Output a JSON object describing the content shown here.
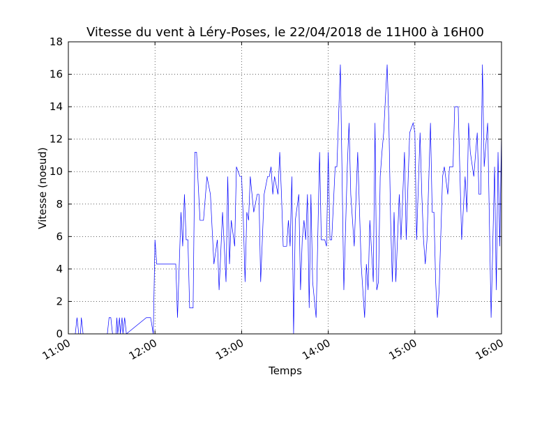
{
  "chart_data": {
    "type": "line",
    "title": "Vitesse du vent à Léry-Poses, le 22/04/2018 de 11H00 à 16H00",
    "xlabel": "Temps",
    "ylabel": "Vitesse (noeud)",
    "color": "#0000ff",
    "grid": true,
    "xlim": [
      11,
      16
    ],
    "xticks": [
      {
        "value": 11,
        "label": "11:00"
      },
      {
        "value": 12,
        "label": "12:00"
      },
      {
        "value": 13,
        "label": "13:00"
      },
      {
        "value": 14,
        "label": "14:00"
      },
      {
        "value": 15,
        "label": "15:00"
      },
      {
        "value": 16,
        "label": "16:00"
      }
    ],
    "ylim": [
      0,
      18
    ],
    "yticks": [
      0,
      2,
      4,
      6,
      8,
      10,
      12,
      14,
      16,
      18
    ],
    "x": [
      11,
      11.08,
      11.1,
      11.12,
      11.14,
      11.15,
      11.17,
      11.45,
      11.47,
      11.49,
      11.51,
      11.55,
      11.56,
      11.57,
      11.59,
      11.6,
      11.62,
      11.63,
      11.65,
      11.67,
      11.9,
      11.95,
      11.98,
      12,
      12.02,
      12.24,
      12.26,
      12.3,
      12.32,
      12.34,
      12.36,
      12.38,
      12.4,
      12.44,
      12.46,
      12.48,
      12.52,
      12.56,
      12.6,
      12.64,
      12.68,
      12.72,
      12.74,
      12.78,
      12.82,
      12.84,
      12.86,
      12.88,
      12.92,
      12.94,
      12.98,
      13,
      13.02,
      13.04,
      13.06,
      13.08,
      13.1,
      13.14,
      13.18,
      13.2,
      13.22,
      13.26,
      13.3,
      13.32,
      13.34,
      13.36,
      13.38,
      13.42,
      13.44,
      13.46,
      13.48,
      13.52,
      13.54,
      13.56,
      13.58,
      13.6,
      13.62,
      13.66,
      13.68,
      13.7,
      13.72,
      13.74,
      13.76,
      13.78,
      13.8,
      13.82,
      13.86,
      13.9,
      13.92,
      13.96,
      13.98,
      14,
      14.02,
      14.04,
      14.08,
      14.1,
      14.14,
      14.18,
      14.22,
      14.24,
      14.26,
      14.3,
      14.34,
      14.38,
      14.42,
      14.44,
      14.46,
      14.48,
      14.52,
      14.54,
      14.56,
      14.58,
      14.6,
      14.62,
      14.64,
      14.68,
      14.7,
      14.72,
      14.74,
      14.76,
      14.78,
      14.82,
      14.84,
      14.88,
      14.9,
      14.94,
      14.98,
      15,
      15.02,
      15.06,
      15.08,
      15.1,
      15.12,
      15.14,
      15.18,
      15.2,
      15.22,
      15.24,
      15.26,
      15.28,
      15.32,
      15.34,
      15.38,
      15.4,
      15.44,
      15.46,
      15.5,
      15.54,
      15.58,
      15.6,
      15.62,
      15.64,
      15.68,
      15.72,
      15.74,
      15.76,
      15.78,
      15.8,
      15.84,
      15.86,
      15.88,
      15.92,
      15.94,
      15.96,
      15.98,
      16
    ],
    "values": [
      0,
      0,
      1,
      0,
      0,
      1,
      0,
      0,
      1,
      1,
      0,
      0,
      1,
      0,
      1,
      0,
      1,
      0,
      1,
      0,
      1,
      1,
      0,
      5.8,
      4.3,
      4.3,
      1,
      7.5,
      5.4,
      8.6,
      5.8,
      5.8,
      1.6,
      1.6,
      11.2,
      11.2,
      7,
      7,
      9.7,
      8.6,
      4.3,
      5.8,
      2.7,
      7.5,
      3.2,
      9.7,
      4.3,
      7,
      5.4,
      10.3,
      9.7,
      9.7,
      7,
      3.2,
      7.5,
      7,
      9.7,
      7.5,
      8.6,
      8.6,
      3.2,
      8.6,
      9.7,
      9.7,
      10.3,
      8.6,
      9.7,
      8.6,
      11.2,
      8.6,
      5.4,
      5.4,
      7,
      5.4,
      9.7,
      0,
      7,
      8.6,
      2.7,
      5.8,
      7,
      5.8,
      8.6,
      1.6,
      8.6,
      3.2,
      1,
      11.2,
      5.8,
      5.8,
      5.4,
      11.2,
      5.8,
      5.8,
      10.3,
      10.3,
      16.6,
      2.7,
      10.3,
      13,
      8.6,
      5.4,
      11.2,
      4.3,
      1,
      4.3,
      2.7,
      7,
      3.2,
      13,
      2.7,
      3.2,
      9.7,
      11.2,
      12.4,
      16.6,
      13,
      7,
      3.2,
      7.5,
      3.2,
      8.6,
      5.8,
      11.2,
      5.8,
      12.4,
      13,
      12.4,
      5.8,
      12.4,
      8.6,
      5.8,
      4.3,
      5.8,
      13,
      7.5,
      7.5,
      3.2,
      1,
      2.7,
      9.7,
      10.3,
      8.6,
      10.3,
      10.3,
      14,
      14,
      5.8,
      9.7,
      7.5,
      13,
      11.2,
      9.7,
      12.4,
      8.6,
      8.6,
      16.6,
      10.3,
      13,
      7,
      1,
      10.3,
      2.7,
      11.2,
      5.4,
      12.4
    ]
  }
}
